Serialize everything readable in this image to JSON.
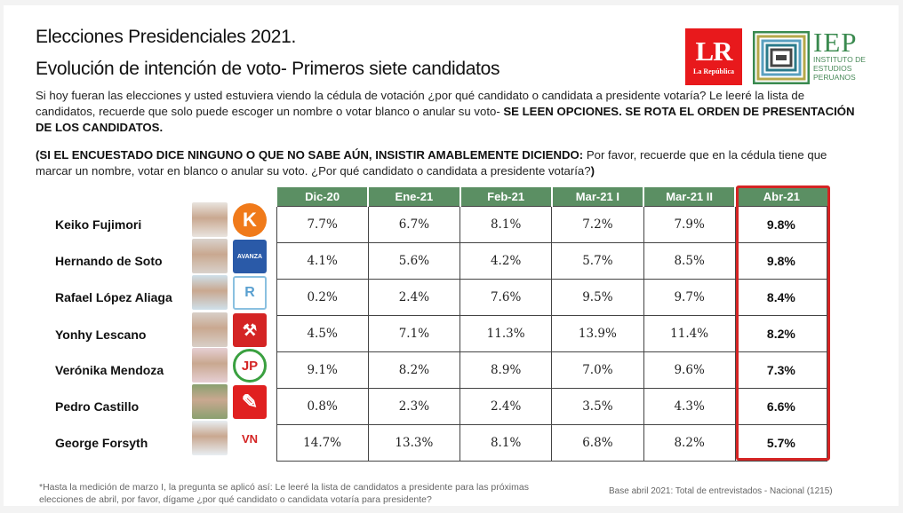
{
  "header": {
    "title": "Elecciones Presidenciales 2021.",
    "subtitle": "Evolución de intención de voto- Primeros siete candidatos"
  },
  "logos": {
    "lr": {
      "big": "LR",
      "small": "La República"
    },
    "iep": {
      "big": "IEP",
      "line1": "INSTITUTO DE",
      "line2": "ESTUDIOS",
      "line3": "PERUANOS"
    }
  },
  "question": {
    "text": "Si hoy fueran las elecciones y usted estuviera viendo la cédula de votación ¿por qué candidato o candidata a presidente votaría? Le leeré la lista de candidatos, recuerde que solo puede escoger un nombre o votar blanco o anular su voto- ",
    "bold": "SE LEEN OPCIONES. SE ROTA EL ORDEN DE PRESENTACIÓN DE LOS CANDIDATOS."
  },
  "instruction": {
    "bold": "(SI EL ENCUESTADO DICE NINGUNO O QUE NO SABE AÚN, INSISTIR AMABLEMENTE DICIENDO:",
    "text": " Por favor, recuerde que en la cédula tiene que marcar un nombre, votar en blanco o anular su voto. ¿Por qué candidato o candidata a presidente votaría?",
    "close": ")"
  },
  "chart_data": {
    "type": "table",
    "title": "Evolución de intención de voto- Primeros siete candidatos",
    "columns": [
      "Dic-20",
      "Ene-21",
      "Feb-21",
      "Mar-21 I",
      "Mar-21 II",
      "Abr-21"
    ],
    "highlighted_column": "Abr-21",
    "rows": [
      {
        "candidate": "Keiko Fujimori",
        "party_icon": "K",
        "values": [
          "7.7%",
          "6.7%",
          "8.1%",
          "7.2%",
          "7.9%",
          "9.8%"
        ]
      },
      {
        "candidate": "Hernando de Soto",
        "party_icon": "AVANZA PAÍS",
        "values": [
          "4.1%",
          "5.6%",
          "4.2%",
          "5.7%",
          "8.5%",
          "9.8%"
        ]
      },
      {
        "candidate": "Rafael López Aliaga",
        "party_icon": "R",
        "values": [
          "0.2%",
          "2.4%",
          "7.6%",
          "9.5%",
          "9.7%",
          "8.4%"
        ]
      },
      {
        "candidate": "Yonhy Lescano",
        "party_icon": "shovel",
        "values": [
          "4.5%",
          "7.1%",
          "11.3%",
          "13.9%",
          "11.4%",
          "8.2%"
        ]
      },
      {
        "candidate": "Verónika Mendoza",
        "party_icon": "JP",
        "values": [
          "9.1%",
          "8.2%",
          "8.9%",
          "7.0%",
          "9.6%",
          "7.3%"
        ]
      },
      {
        "candidate": "Pedro Castillo",
        "party_icon": "pencil",
        "values": [
          "0.8%",
          "2.3%",
          "2.4%",
          "3.5%",
          "4.3%",
          "6.6%"
        ]
      },
      {
        "candidate": "George Forsyth",
        "party_icon": "VN",
        "values": [
          "14.7%",
          "13.3%",
          "8.1%",
          "6.8%",
          "8.2%",
          "5.7%"
        ]
      }
    ]
  },
  "footer": {
    "note": "*Hasta la medición de marzo I, la pregunta se aplicó así: Le leeré la lista de candidatos a presidente para las próximas elecciones de abril, por favor, dígame ¿por qué candidato o candidata votaría para presidente?",
    "base": "Base abril 2021: Total de entrevistados - Nacional (1215)"
  },
  "colors": {
    "header_green": "#5b8f63",
    "highlight_red": "#d42424",
    "lr_red": "#e8191c",
    "iep_green": "#3a8a4f"
  }
}
